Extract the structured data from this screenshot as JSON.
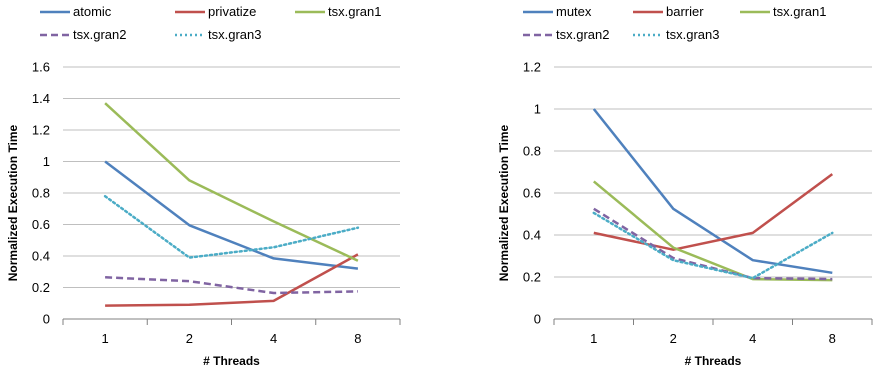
{
  "chart_data": [
    {
      "type": "line",
      "title": "",
      "xlabel": "# Threads",
      "ylabel": "Normalized Execution Time",
      "categories": [
        "1",
        "2",
        "4",
        "8"
      ],
      "ylim": [
        0,
        1.6
      ],
      "yticks": [
        "0",
        "0.2",
        "0.4",
        "0.6",
        "0.8",
        "1",
        "1.2",
        "1.4",
        "1.6"
      ],
      "grid": true,
      "legend_position": "top",
      "series": [
        {
          "name": "atomic",
          "values": [
            1.0,
            0.595,
            0.385,
            0.32
          ],
          "color": "#4F81BD",
          "dash": "solid"
        },
        {
          "name": "privatize",
          "values": [
            0.085,
            0.09,
            0.115,
            0.41
          ],
          "color": "#C0504D",
          "dash": "solid"
        },
        {
          "name": "tsx.gran1",
          "values": [
            1.37,
            0.88,
            0.62,
            0.37
          ],
          "color": "#9BBB59",
          "dash": "solid"
        },
        {
          "name": "tsx.gran2",
          "values": [
            0.265,
            0.24,
            0.165,
            0.175
          ],
          "color": "#8064A2",
          "dash": "dashed"
        },
        {
          "name": "tsx.gran3",
          "values": [
            0.78,
            0.39,
            0.455,
            0.58
          ],
          "color": "#4BACC6",
          "dash": "dotted"
        }
      ]
    },
    {
      "type": "line",
      "title": "",
      "xlabel": "# Threads",
      "ylabel": "Normalized Execution Time",
      "categories": [
        "1",
        "2",
        "4",
        "8"
      ],
      "ylim": [
        0,
        1.2
      ],
      "yticks": [
        "0",
        "0.2",
        "0.4",
        "0.6",
        "0.8",
        "1",
        "1.2"
      ],
      "grid": true,
      "legend_position": "top",
      "series": [
        {
          "name": "mutex",
          "values": [
            1.0,
            0.525,
            0.28,
            0.22
          ],
          "color": "#4F81BD",
          "dash": "solid"
        },
        {
          "name": "barrier",
          "values": [
            0.41,
            0.33,
            0.41,
            0.69
          ],
          "color": "#C0504D",
          "dash": "solid"
        },
        {
          "name": "tsx.gran1",
          "values": [
            0.655,
            0.34,
            0.19,
            0.185
          ],
          "color": "#9BBB59",
          "dash": "solid"
        },
        {
          "name": "tsx.gran2",
          "values": [
            0.525,
            0.29,
            0.195,
            0.19
          ],
          "color": "#8064A2",
          "dash": "dashed"
        },
        {
          "name": "tsx.gran3",
          "values": [
            0.505,
            0.28,
            0.195,
            0.41
          ],
          "color": "#4BACC6",
          "dash": "dotted"
        }
      ]
    }
  ]
}
